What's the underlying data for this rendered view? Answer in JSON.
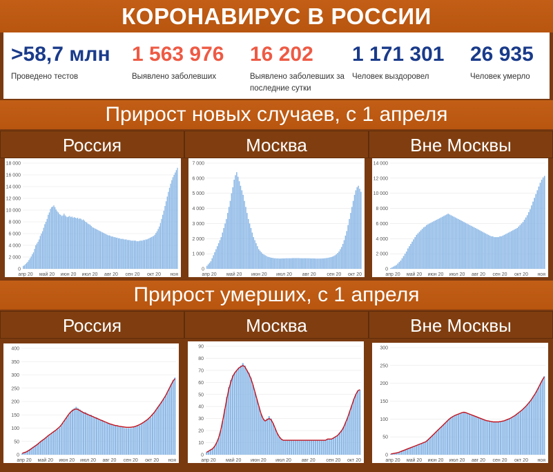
{
  "header": {
    "title": "КОРОНАВИРУС В РОССИИ"
  },
  "stats": [
    {
      "value": ">58,7 млн",
      "label": "Проведено тестов",
      "color": "#1a3b8a"
    },
    {
      "value": "1 563 976",
      "label": "Выявлено заболевших",
      "color": "#ee5a44"
    },
    {
      "value": "16 202",
      "label": "Выявлено заболевших за последние сутки",
      "color": "#ee5a44"
    },
    {
      "value": "1 171 301",
      "label": "Человек выздоровел",
      "color": "#1a3b8a"
    },
    {
      "value": "26 935",
      "label": "Человек умерло",
      "color": "#1a3b8a"
    }
  ],
  "sections": {
    "cases_title": "Прирост новых случаев, с 1 апреля",
    "deaths_title": "Прирост умерших, с 1 апреля"
  },
  "colors": {
    "bar": "#8cb8e6",
    "trend": "#c0121e",
    "banner": "#c25e16",
    "panel_head": "#803e10"
  },
  "chart_data": [
    {
      "id": "cases-russia",
      "type": "bar",
      "title": "Россия",
      "ylim": [
        0,
        18000
      ],
      "yticks": [
        "0",
        "2 000",
        "4 000",
        "6 000",
        "8 000",
        "10 000",
        "12 000",
        "14 000",
        "16 000",
        "18 000"
      ],
      "xticks": [
        "апр 20",
        "май 20",
        "июн 20",
        "июл 20",
        "авг 20",
        "сен 20",
        "окт 20",
        "ноя"
      ],
      "values": [
        500,
        600,
        800,
        1000,
        1200,
        1500,
        1800,
        2100,
        2500,
        2800,
        3400,
        4000,
        4300,
        4600,
        5000,
        5600,
        6000,
        6400,
        7000,
        7600,
        8000,
        8500,
        9200,
        9600,
        10200,
        10500,
        10600,
        10800,
        10500,
        10100,
        9800,
        9600,
        9300,
        9200,
        9000,
        9100,
        9400,
        9100,
        8900,
        8800,
        8900,
        9000,
        8800,
        8900,
        8700,
        8800,
        8700,
        8600,
        8700,
        8500,
        8600,
        8500,
        8300,
        8400,
        8200,
        8000,
        7900,
        7700,
        7600,
        7500,
        7300,
        7100,
        7000,
        6900,
        6800,
        6700,
        6600,
        6500,
        6400,
        6300,
        6200,
        6100,
        6000,
        5900,
        5800,
        5700,
        5700,
        5600,
        5500,
        5500,
        5400,
        5400,
        5300,
        5300,
        5200,
        5200,
        5100,
        5100,
        5100,
        5000,
        5000,
        5000,
        4900,
        4900,
        4900,
        4800,
        4800,
        4800,
        4800,
        4800,
        4700,
        4700,
        4700,
        4800,
        4800,
        4800,
        4900,
        4900,
        5000,
        5000,
        5100,
        5200,
        5300,
        5400,
        5500,
        5600,
        5800,
        6100,
        6400,
        6800,
        7200,
        7800,
        8500,
        9200,
        9900,
        10700,
        11500,
        12300,
        13100,
        13800,
        14500,
        15100,
        15600,
        16000,
        16400,
        16800,
        17200
      ]
    },
    {
      "id": "cases-moscow",
      "type": "bar",
      "title": "Москва",
      "ylim": [
        0,
        7000
      ],
      "yticks": [
        "0",
        "1 000",
        "2 000",
        "3 000",
        "4 000",
        "5 000",
        "6 000",
        "7 000"
      ],
      "xticks": [
        "апр 20",
        "май 20",
        "июн 20",
        "июл 20",
        "авг 20",
        "сен 20",
        "окт 20"
      ],
      "values": [
        200,
        300,
        400,
        500,
        700,
        900,
        1100,
        1300,
        1500,
        1700,
        1900,
        2100,
        2400,
        2700,
        3000,
        3300,
        3700,
        4100,
        4500,
        5000,
        5400,
        5900,
        6200,
        6400,
        6100,
        5800,
        5500,
        5200,
        4900,
        4500,
        4100,
        3700,
        3300,
        3000,
        2700,
        2400,
        2100,
        1900,
        1700,
        1500,
        1300,
        1200,
        1100,
        1000,
        950,
        900,
        850,
        800,
        780,
        750,
        730,
        720,
        700,
        700,
        690,
        690,
        680,
        680,
        690,
        690,
        690,
        700,
        700,
        700,
        700,
        700,
        710,
        710,
        710,
        710,
        710,
        710,
        700,
        700,
        700,
        700,
        700,
        700,
        700,
        700,
        690,
        690,
        690,
        690,
        680,
        680,
        680,
        680,
        680,
        690,
        690,
        700,
        710,
        720,
        740,
        760,
        780,
        810,
        850,
        900,
        960,
        1050,
        1150,
        1300,
        1450,
        1650,
        1900,
        2200,
        2500,
        2900,
        3300,
        3700,
        4100,
        4500,
        4900,
        5200,
        5400,
        5500,
        5300,
        5100
      ]
    },
    {
      "id": "cases-outside",
      "type": "bar",
      "title": "Вне Москвы",
      "ylim": [
        0,
        14000
      ],
      "yticks": [
        "0",
        "2 000",
        "4 000",
        "6 000",
        "8 000",
        "10 000",
        "12 000",
        "14 000"
      ],
      "xticks": [
        "апр 20",
        "май 20",
        "июн 20",
        "июл 20",
        "авг 20",
        "сен 20",
        "окт 20",
        "ноя"
      ],
      "values": [
        100,
        200,
        300,
        400,
        500,
        700,
        900,
        1100,
        1400,
        1700,
        2000,
        2300,
        2700,
        3000,
        3300,
        3600,
        3900,
        4200,
        4500,
        4700,
        4900,
        5100,
        5300,
        5500,
        5600,
        5800,
        5900,
        6000,
        6100,
        6200,
        6300,
        6400,
        6500,
        6600,
        6700,
        6800,
        6900,
        7000,
        7100,
        7200,
        7300,
        7200,
        7100,
        7000,
        6900,
        6800,
        6700,
        6600,
        6500,
        6400,
        6300,
        6200,
        6100,
        6000,
        5900,
        5800,
        5700,
        5600,
        5500,
        5400,
        5300,
        5200,
        5100,
        5000,
        4900,
        4800,
        4700,
        4600,
        4500,
        4400,
        4300,
        4300,
        4200,
        4200,
        4200,
        4200,
        4300,
        4300,
        4400,
        4500,
        4600,
        4700,
        4800,
        4900,
        5000,
        5100,
        5200,
        5300,
        5400,
        5600,
        5800,
        6000,
        6200,
        6500,
        6800,
        7100,
        7500,
        7900,
        8400,
        8900,
        9400,
        9900,
        10400,
        10900,
        11400,
        11800,
        12100,
        12300
      ]
    },
    {
      "id": "deaths-russia",
      "type": "bar",
      "title": "Россия",
      "ylim": [
        0,
        400
      ],
      "yticks": [
        "0",
        "50",
        "100",
        "150",
        "200",
        "250",
        "300",
        "350",
        "400"
      ],
      "xticks": [
        "апр 20",
        "май 20",
        "июн 20",
        "июл 20",
        "авг 20",
        "сен 20",
        "окт 20",
        "ноя"
      ],
      "values": [
        5,
        8,
        10,
        15,
        20,
        25,
        30,
        35,
        40,
        45,
        50,
        55,
        60,
        65,
        70,
        75,
        80,
        85,
        90,
        95,
        100,
        110,
        120,
        130,
        140,
        150,
        160,
        170,
        175,
        180,
        175,
        170,
        165,
        160,
        160,
        155,
        150,
        150,
        145,
        140,
        140,
        135,
        130,
        130,
        125,
        120,
        120,
        115,
        115,
        110,
        110,
        110,
        105,
        105,
        105,
        100,
        100,
        100,
        100,
        100,
        105,
        105,
        110,
        110,
        115,
        120,
        125,
        130,
        135,
        140,
        150,
        160,
        170,
        180,
        190,
        200,
        210,
        220,
        235,
        250,
        265,
        280,
        290
      ],
      "trend": [
        5,
        8,
        10,
        14,
        18,
        23,
        28,
        33,
        38,
        44,
        50,
        55,
        60,
        66,
        72,
        77,
        82,
        87,
        92,
        98,
        104,
        112,
        122,
        132,
        142,
        152,
        160,
        166,
        170,
        172,
        170,
        166,
        162,
        158,
        155,
        152,
        149,
        146,
        143,
        140,
        137,
        134,
        131,
        128,
        125,
        122,
        119,
        116,
        114,
        112,
        110,
        109,
        107,
        106,
        105,
        104,
        103,
        103,
        103,
        104,
        105,
        107,
        110,
        113,
        117,
        121,
        126,
        131,
        137,
        144,
        152,
        160,
        170,
        180,
        190,
        200,
        211,
        222,
        236,
        250,
        264,
        277,
        286
      ]
    },
    {
      "id": "deaths-moscow",
      "type": "bar",
      "title": "Москва",
      "ylim": [
        0,
        90
      ],
      "yticks": [
        "0",
        "10",
        "20",
        "30",
        "40",
        "50",
        "60",
        "70",
        "80",
        "90"
      ],
      "xticks": [
        "апр 20",
        "май 20",
        "июн 20",
        "июл 20",
        "авг 20",
        "сен 20",
        "окт 20"
      ],
      "values": [
        2,
        3,
        4,
        5,
        7,
        10,
        14,
        20,
        28,
        38,
        48,
        56,
        62,
        66,
        68,
        70,
        72,
        74,
        76,
        74,
        70,
        68,
        64,
        58,
        52,
        46,
        40,
        34,
        30,
        28,
        30,
        32,
        30,
        26,
        22,
        18,
        15,
        13,
        12,
        12,
        12,
        12,
        12,
        12,
        12,
        12,
        12,
        12,
        12,
        12,
        12,
        12,
        12,
        12,
        12,
        12,
        12,
        12,
        12,
        12,
        13,
        13,
        13,
        14,
        15,
        16,
        18,
        20,
        23,
        27,
        31,
        36,
        41,
        46,
        50,
        53,
        54
      ],
      "trend": [
        2,
        3,
        4,
        5,
        7,
        10,
        14,
        20,
        28,
        37,
        46,
        54,
        60,
        65,
        68,
        70,
        72,
        73,
        74,
        73,
        70,
        67,
        63,
        58,
        52,
        46,
        40,
        34,
        30,
        28,
        29,
        30,
        29,
        26,
        22,
        18,
        15,
        13,
        12,
        12,
        12,
        12,
        12,
        12,
        12,
        12,
        12,
        12,
        12,
        12,
        12,
        12,
        12,
        12,
        12,
        12,
        12,
        12,
        12,
        12,
        13,
        13,
        13,
        14,
        15,
        16,
        18,
        20,
        23,
        27,
        31,
        36,
        41,
        46,
        50,
        53,
        54
      ]
    },
    {
      "id": "deaths-outside",
      "type": "bar",
      "title": "Вне Москвы",
      "ylim": [
        0,
        300
      ],
      "yticks": [
        "0",
        "50",
        "100",
        "150",
        "200",
        "250",
        "300"
      ],
      "xticks": [
        "апр 20",
        "май 20",
        "июн 20",
        "июл 20",
        "авг 20",
        "сен 20",
        "окт 20",
        "ноя"
      ],
      "values": [
        2,
        3,
        4,
        5,
        6,
        8,
        10,
        12,
        14,
        16,
        18,
        20,
        22,
        24,
        26,
        28,
        30,
        32,
        34,
        36,
        40,
        45,
        50,
        55,
        60,
        65,
        70,
        75,
        80,
        85,
        90,
        95,
        100,
        105,
        108,
        110,
        112,
        114,
        116,
        118,
        120,
        118,
        116,
        114,
        112,
        110,
        108,
        106,
        104,
        102,
        100,
        98,
        96,
        95,
        94,
        93,
        92,
        92,
        92,
        92,
        93,
        94,
        95,
        97,
        99,
        101,
        104,
        107,
        110,
        114,
        118,
        122,
        126,
        131,
        136,
        142,
        148,
        155,
        163,
        171,
        180,
        190,
        200,
        210,
        220
      ],
      "trend": [
        2,
        3,
        4,
        5,
        6,
        8,
        10,
        12,
        14,
        16,
        18,
        20,
        22,
        24,
        26,
        28,
        30,
        32,
        34,
        36,
        40,
        45,
        50,
        55,
        60,
        65,
        70,
        75,
        80,
        85,
        90,
        95,
        100,
        104,
        107,
        110,
        112,
        114,
        116,
        118,
        119,
        118,
        116,
        114,
        112,
        110,
        108,
        106,
        104,
        102,
        100,
        98,
        96,
        95,
        94,
        93,
        92,
        92,
        92,
        92,
        93,
        94,
        95,
        97,
        99,
        101,
        104,
        107,
        110,
        114,
        118,
        122,
        126,
        131,
        136,
        142,
        148,
        155,
        163,
        171,
        180,
        190,
        200,
        210,
        218
      ]
    }
  ]
}
